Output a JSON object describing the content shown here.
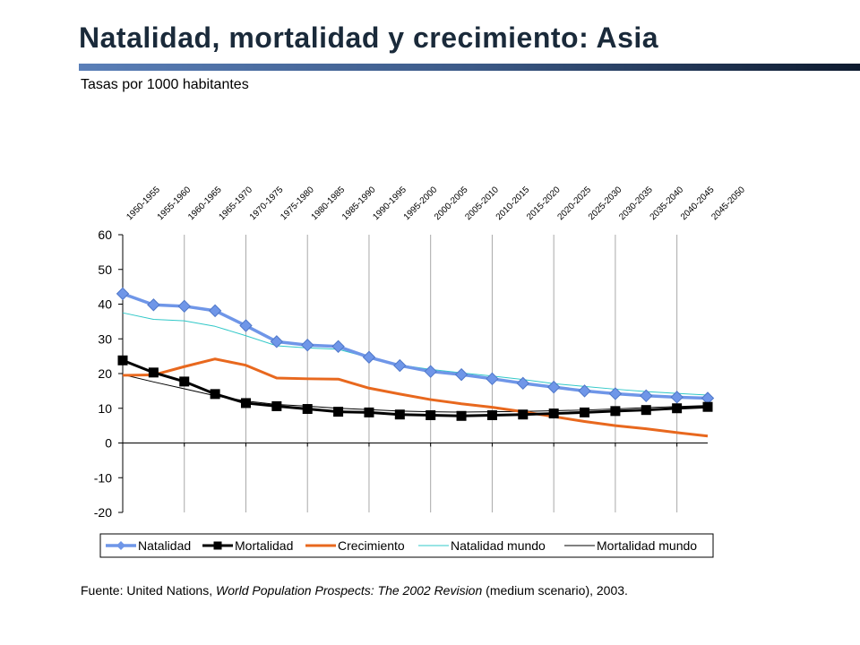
{
  "title": "Natalidad, mortalidad y crecimiento: Asia",
  "subtitle": "Tasas por 1000 habitantes",
  "source": {
    "prefix": "Fuente: United Nations, ",
    "publication": "World Population Prospects: The 2002 Revision",
    "open_paren": " (",
    "scenario": "medium scenario",
    "suffix": "), 2003."
  },
  "chart_data": {
    "type": "line",
    "title": "",
    "xlabel": "",
    "ylabel": "",
    "ylim": [
      -20,
      60
    ],
    "yticks": [
      60,
      50,
      40,
      30,
      20,
      10,
      0,
      -10,
      -20
    ],
    "grid": "vertical",
    "legend_position": "bottom",
    "categories": [
      "1950-1955",
      "1955-1960",
      "1960-1965",
      "1965-1970",
      "1970-1975",
      "1975-1980",
      "1980-1985",
      "1985-1990",
      "1990-1995",
      "1995-2000",
      "2000-2005",
      "2005-2010",
      "2010-2015",
      "2015-2020",
      "2020-2025",
      "2025-2030",
      "2030-2035",
      "2035-2040",
      "2040-2045",
      "2045-2050"
    ],
    "series": [
      {
        "name": "Natalidad",
        "color": "#6f96e8",
        "marker": "diamond",
        "values": [
          43.0,
          39.8,
          39.4,
          38.1,
          33.8,
          29.2,
          28.2,
          27.8,
          24.7,
          22.3,
          20.6,
          19.7,
          18.5,
          17.2,
          16.1,
          15.0,
          14.2,
          13.6,
          13.2,
          12.9
        ]
      },
      {
        "name": "Mortalidad",
        "color": "#000000",
        "marker": "square",
        "values": [
          23.8,
          20.3,
          17.7,
          14.1,
          11.5,
          10.6,
          9.8,
          9.0,
          8.8,
          8.2,
          8.0,
          7.8,
          8.0,
          8.2,
          8.5,
          8.8,
          9.2,
          9.5,
          10.0,
          10.4
        ]
      },
      {
        "name": "Crecimiento",
        "color": "#e8681e",
        "marker": "none",
        "values": [
          19.5,
          19.6,
          22.0,
          24.2,
          22.4,
          18.7,
          18.5,
          18.4,
          15.8,
          14.1,
          12.5,
          11.3,
          10.3,
          9.0,
          7.6,
          6.2,
          5.0,
          4.1,
          3.0,
          2.0
        ]
      },
      {
        "name": "Natalidad mundo",
        "color": "#31c8c8",
        "marker": "none",
        "values": [
          37.5,
          35.6,
          35.2,
          33.6,
          30.9,
          28.0,
          27.4,
          27.0,
          24.6,
          22.5,
          21.2,
          20.2,
          19.3,
          18.3,
          17.1,
          16.3,
          15.5,
          14.8,
          14.3,
          13.8
        ]
      },
      {
        "name": "Mortalidad mundo",
        "color": "#000000",
        "marker": "none",
        "values": [
          19.7,
          17.6,
          15.6,
          13.6,
          12.1,
          11.1,
          10.6,
          10.0,
          9.6,
          9.2,
          9.0,
          8.9,
          9.0,
          9.1,
          9.3,
          9.5,
          9.8,
          10.2,
          10.5,
          10.8
        ]
      }
    ]
  }
}
